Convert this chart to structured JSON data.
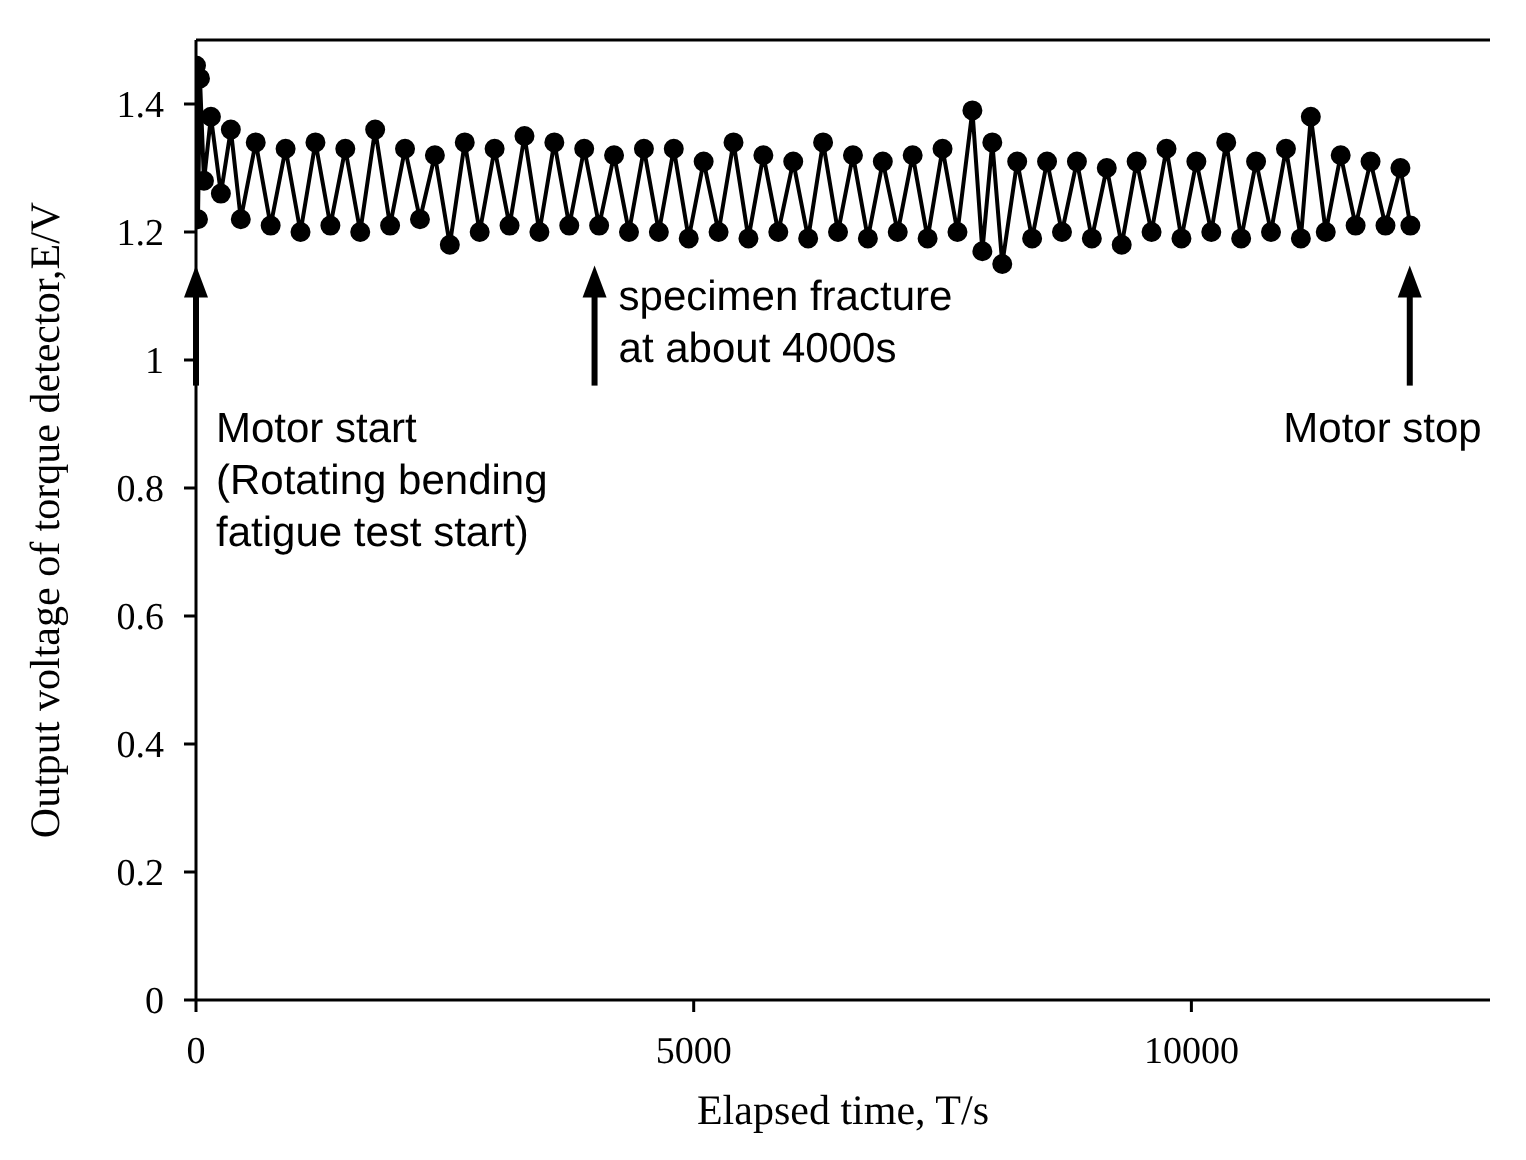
{
  "chart_data": {
    "type": "line",
    "xlabel": "Elapsed time, T/s",
    "ylabel": "Output voltage of torque detector,E/V",
    "xlim": [
      0,
      13000
    ],
    "xticks": [
      0,
      5000,
      10000
    ],
    "ylim": [
      0,
      1.5
    ],
    "yticks": [
      0,
      0.2,
      0.4,
      0.6,
      0.8,
      1,
      1.2,
      1.4
    ],
    "marker": "circle",
    "line_style": "solid",
    "x": [
      0,
      20,
      40,
      80,
      150,
      250,
      350,
      450,
      600,
      750,
      900,
      1050,
      1200,
      1350,
      1500,
      1650,
      1800,
      1950,
      2100,
      2250,
      2400,
      2550,
      2700,
      2850,
      3000,
      3150,
      3300,
      3450,
      3600,
      3750,
      3900,
      4050,
      4200,
      4350,
      4500,
      4650,
      4800,
      4950,
      5100,
      5250,
      5400,
      5550,
      5700,
      5850,
      6000,
      6150,
      6300,
      6450,
      6600,
      6750,
      6900,
      7050,
      7200,
      7350,
      7500,
      7650,
      7800,
      7900,
      8000,
      8100,
      8250,
      8400,
      8550,
      8700,
      8850,
      9000,
      9150,
      9300,
      9450,
      9600,
      9750,
      9900,
      10050,
      10200,
      10350,
      10500,
      10650,
      10800,
      10950,
      11100,
      11200,
      11350,
      11500,
      11650,
      11800,
      11950,
      12100,
      12200
    ],
    "series": [
      {
        "color": "#000000",
        "values": [
          1.46,
          1.22,
          1.44,
          1.28,
          1.38,
          1.26,
          1.36,
          1.22,
          1.34,
          1.21,
          1.33,
          1.2,
          1.34,
          1.21,
          1.33,
          1.2,
          1.36,
          1.21,
          1.33,
          1.22,
          1.32,
          1.18,
          1.34,
          1.2,
          1.33,
          1.21,
          1.35,
          1.2,
          1.34,
          1.21,
          1.33,
          1.21,
          1.32,
          1.2,
          1.33,
          1.2,
          1.33,
          1.19,
          1.31,
          1.2,
          1.34,
          1.19,
          1.32,
          1.2,
          1.31,
          1.19,
          1.34,
          1.2,
          1.32,
          1.19,
          1.31,
          1.2,
          1.32,
          1.19,
          1.33,
          1.2,
          1.39,
          1.17,
          1.34,
          1.15,
          1.31,
          1.19,
          1.31,
          1.2,
          1.31,
          1.19,
          1.3,
          1.18,
          1.31,
          1.2,
          1.33,
          1.19,
          1.31,
          1.2,
          1.34,
          1.19,
          1.31,
          1.2,
          1.33,
          1.19,
          1.38,
          1.2,
          1.32,
          1.21,
          1.31,
          1.21,
          1.3,
          1.21
        ]
      }
    ],
    "annotations": [
      "Motor start\n(Rotating bending\nfatigue test start)",
      "specimen fracture\nat about 4000s",
      "Motor stop"
    ]
  }
}
